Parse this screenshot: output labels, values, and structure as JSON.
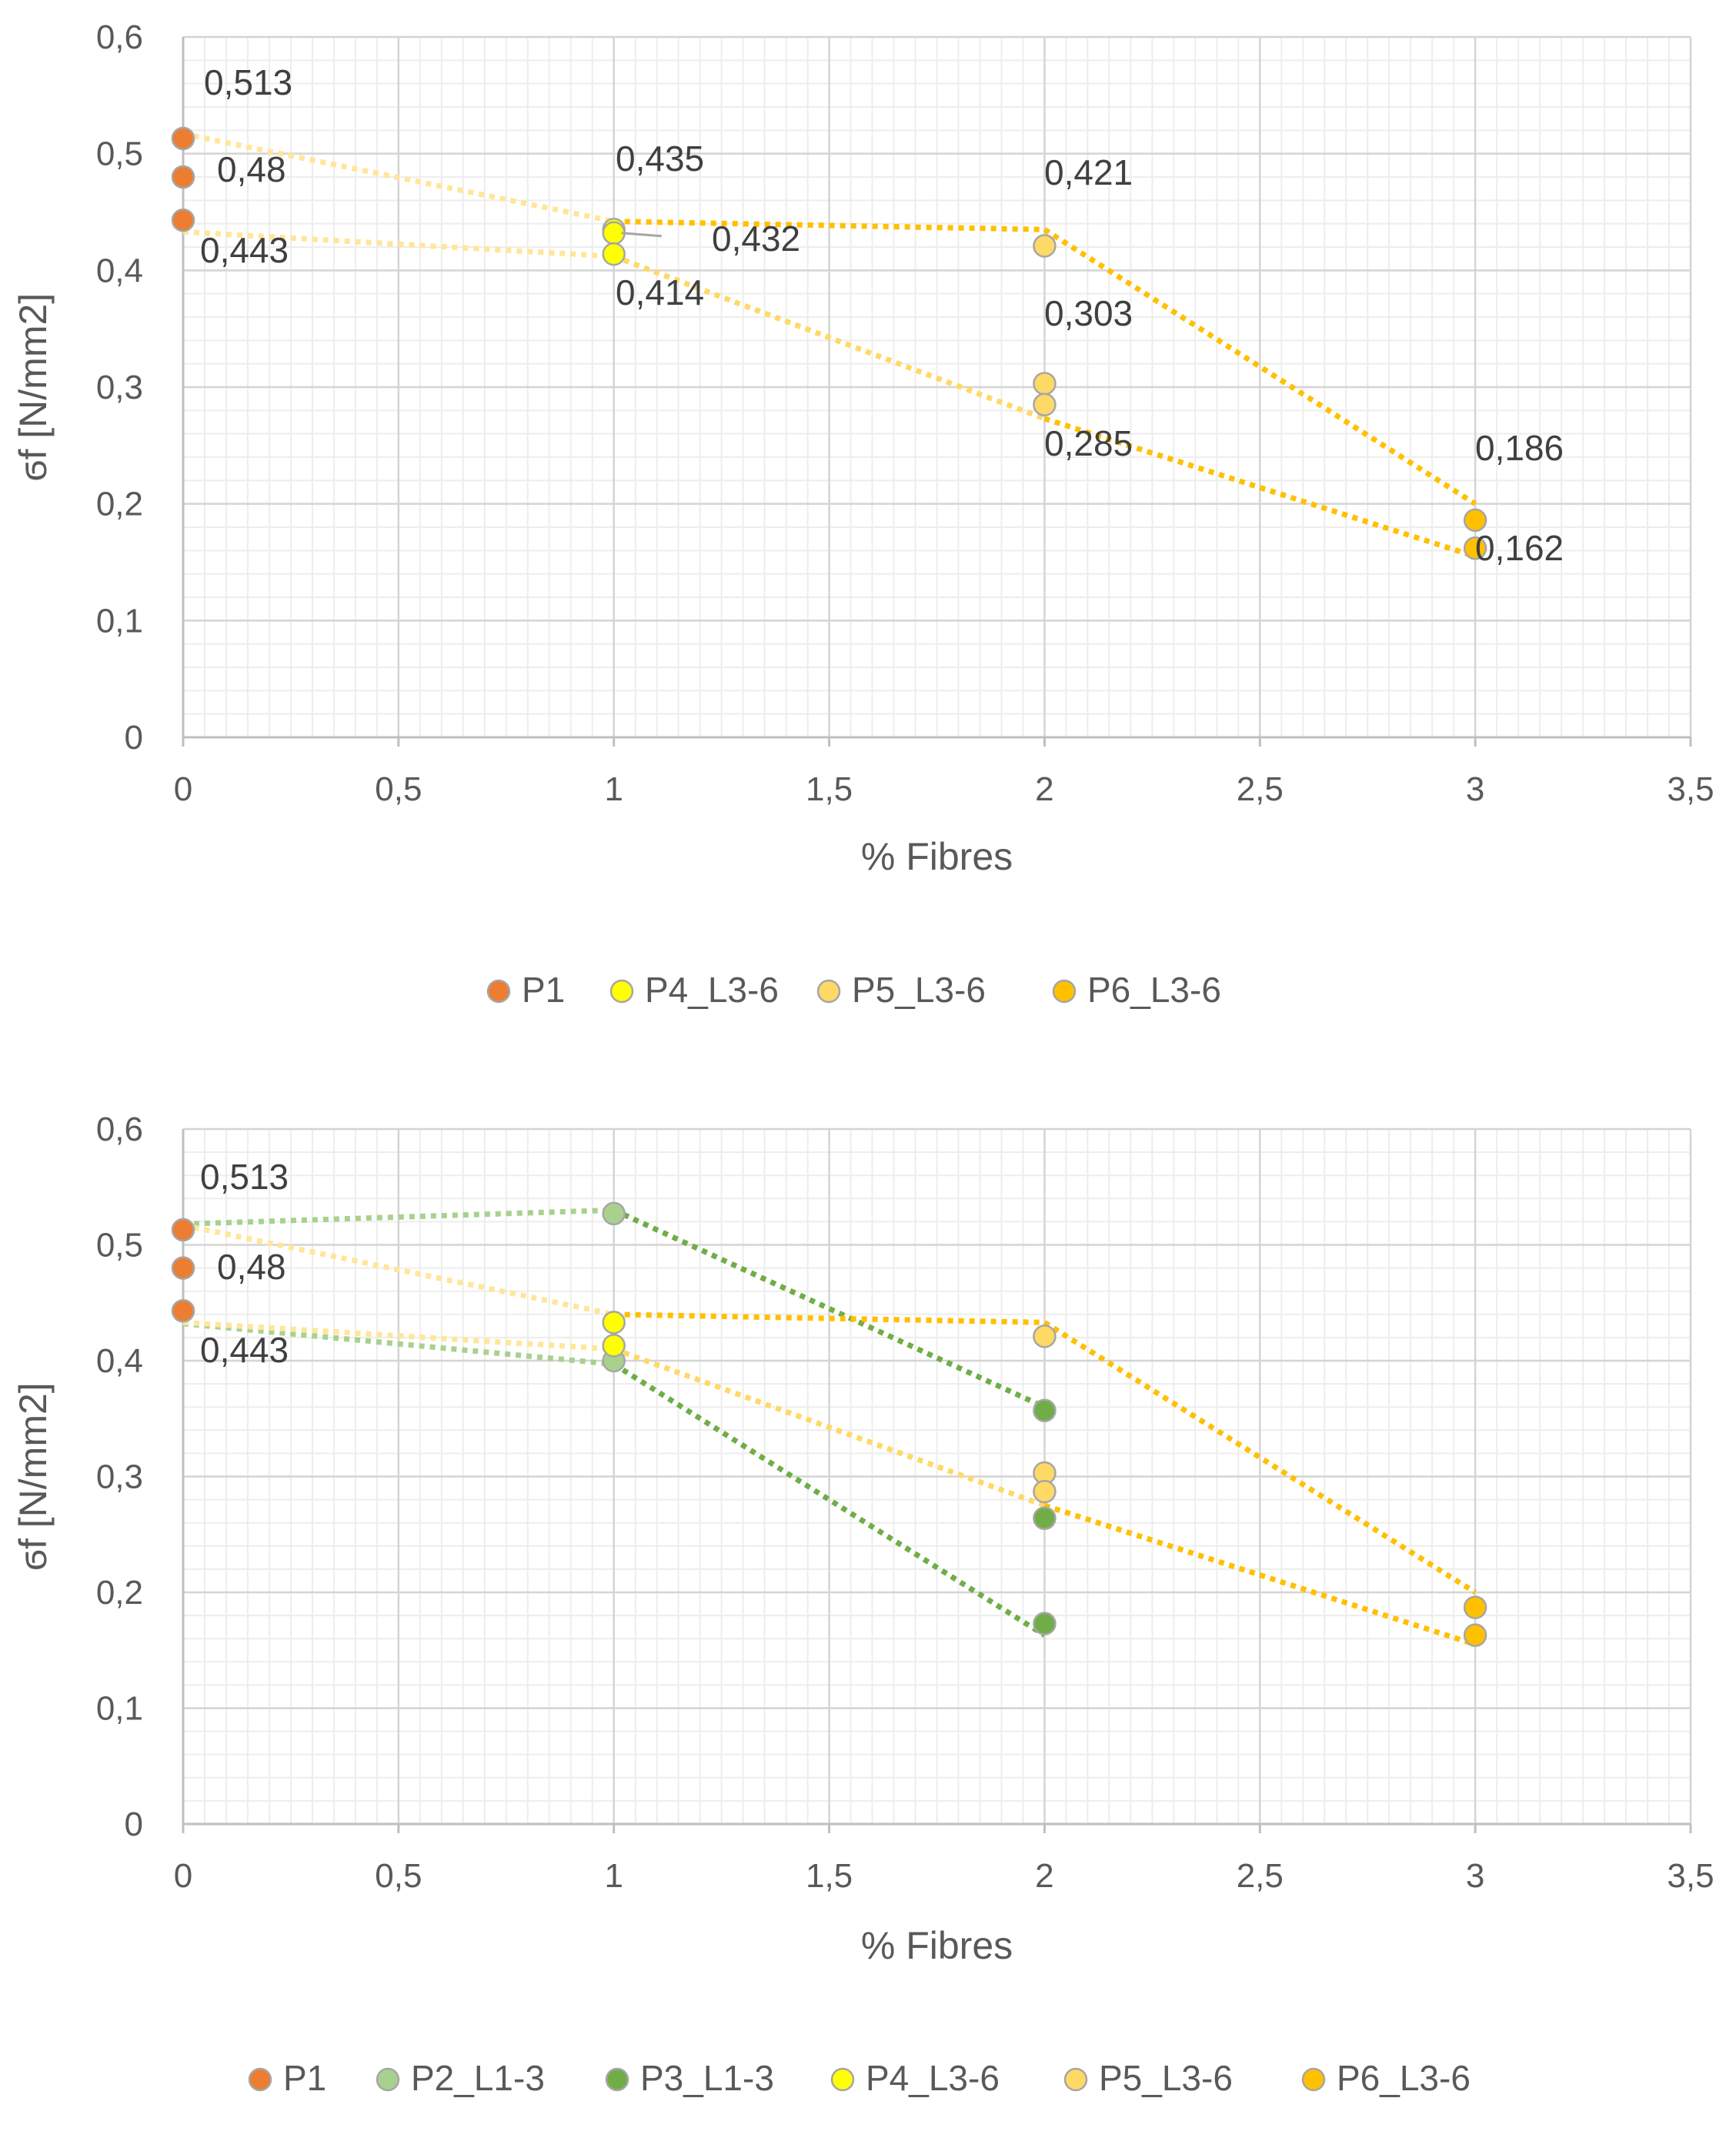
{
  "chart_data": [
    {
      "type": "scatter",
      "title": "",
      "xlabel": "% Fibres",
      "ylabel": "ϭf [N/mm2]",
      "xlim": [
        0,
        3.5
      ],
      "ylim": [
        0,
        0.6
      ],
      "xticks": [
        "0",
        "0,5",
        "1",
        "1,5",
        "2",
        "2,5",
        "3",
        "3,5"
      ],
      "yticks": [
        "0",
        "0,1",
        "0,2",
        "0,3",
        "0,4",
        "0,5",
        "0,6"
      ],
      "grid": true,
      "legend_position": "bottom",
      "series": [
        {
          "name": "P1",
          "color": "#ED7D31",
          "points": [
            [
              0,
              0.513
            ],
            [
              0,
              0.48
            ],
            [
              0,
              0.443
            ]
          ]
        },
        {
          "name": "P4_L3-6",
          "color": "#FFFF00",
          "points": [
            [
              1,
              0.435
            ],
            [
              1,
              0.432
            ],
            [
              1,
              0.414
            ]
          ]
        },
        {
          "name": "P5_L3-6",
          "color": "#FFD966",
          "points": [
            [
              2,
              0.421
            ],
            [
              2,
              0.303
            ],
            [
              2,
              0.285
            ]
          ]
        },
        {
          "name": "P6_L3-6",
          "color": "#FFC000",
          "points": [
            [
              3,
              0.186
            ],
            [
              3,
              0.162
            ]
          ]
        }
      ],
      "trendlines": [
        {
          "color": "#FFE699",
          "from": [
            0,
            0.517
          ],
          "to": [
            1,
            0.442
          ]
        },
        {
          "color": "#FFE699",
          "from": [
            0,
            0.433
          ],
          "to": [
            1,
            0.412
          ]
        },
        {
          "color": "#FFC000",
          "from": [
            1,
            0.442
          ],
          "to": [
            2,
            0.435
          ]
        },
        {
          "color": "#FFC000",
          "from": [
            2,
            0.435
          ],
          "to": [
            3,
            0.2
          ]
        },
        {
          "color": "#FFD966",
          "from": [
            1,
            0.412
          ],
          "to": [
            2,
            0.273
          ]
        },
        {
          "color": "#FFC000",
          "from": [
            2,
            0.273
          ],
          "to": [
            3,
            0.155
          ]
        }
      ],
      "data_labels": [
        {
          "text": "0,513",
          "x": 0,
          "y": 0.513
        },
        {
          "text": "0,48",
          "x": 0,
          "y": 0.48
        },
        {
          "text": "0,443",
          "x": 0,
          "y": 0.443
        },
        {
          "text": "0,435",
          "x": 1,
          "y": 0.435
        },
        {
          "text": "0,432",
          "x": 1,
          "y": 0.432
        },
        {
          "text": "0,414",
          "x": 1,
          "y": 0.414
        },
        {
          "text": "0,421",
          "x": 2,
          "y": 0.421
        },
        {
          "text": "0,303",
          "x": 2,
          "y": 0.303
        },
        {
          "text": "0,285",
          "x": 2,
          "y": 0.285
        },
        {
          "text": "0,186",
          "x": 3,
          "y": 0.186
        },
        {
          "text": "0,162",
          "x": 3,
          "y": 0.162
        }
      ]
    },
    {
      "type": "scatter",
      "title": "",
      "xlabel": "% Fibres",
      "ylabel": "ϭf [N/mm2]",
      "xlim": [
        0,
        3.5
      ],
      "ylim": [
        0,
        0.6
      ],
      "xticks": [
        "0",
        "0,5",
        "1",
        "1,5",
        "2",
        "2,5",
        "3",
        "3,5"
      ],
      "yticks": [
        "0",
        "0,1",
        "0,2",
        "0,3",
        "0,4",
        "0,5",
        "0,6"
      ],
      "grid": true,
      "legend_position": "bottom",
      "series": [
        {
          "name": "P1",
          "color": "#ED7D31",
          "points": [
            [
              0,
              0.513
            ],
            [
              0,
              0.48
            ],
            [
              0,
              0.443
            ]
          ]
        },
        {
          "name": "P2_L1-3",
          "color": "#A9D18E",
          "points": [
            [
              1,
              0.527
            ],
            [
              1,
              0.4
            ]
          ]
        },
        {
          "name": "P3_L1-3",
          "color": "#70AD47",
          "points": [
            [
              2,
              0.357
            ],
            [
              2,
              0.264
            ],
            [
              2,
              0.173
            ]
          ]
        },
        {
          "name": "P4_L3-6",
          "color": "#FFFF00",
          "points": [
            [
              1,
              0.433
            ],
            [
              1,
              0.413
            ]
          ]
        },
        {
          "name": "P5_L3-6",
          "color": "#FFD966",
          "points": [
            [
              2,
              0.421
            ],
            [
              2,
              0.303
            ],
            [
              2,
              0.287
            ]
          ]
        },
        {
          "name": "P6_L3-6",
          "color": "#FFC000",
          "points": [
            [
              3,
              0.187
            ],
            [
              3,
              0.163
            ]
          ]
        }
      ],
      "trendlines": [
        {
          "color": "#A9D18E",
          "from": [
            0,
            0.518
          ],
          "to": [
            1,
            0.53
          ]
        },
        {
          "color": "#A9D18E",
          "from": [
            0,
            0.432
          ],
          "to": [
            1,
            0.397
          ]
        },
        {
          "color": "#70AD47",
          "from": [
            1,
            0.53
          ],
          "to": [
            2,
            0.36
          ]
        },
        {
          "color": "#70AD47",
          "from": [
            1,
            0.397
          ],
          "to": [
            2,
            0.163
          ]
        },
        {
          "color": "#FFE699",
          "from": [
            0,
            0.517
          ],
          "to": [
            1,
            0.44
          ]
        },
        {
          "color": "#FFE699",
          "from": [
            0,
            0.433
          ],
          "to": [
            1,
            0.41
          ]
        },
        {
          "color": "#FFC000",
          "from": [
            1,
            0.44
          ],
          "to": [
            2,
            0.433
          ]
        },
        {
          "color": "#FFC000",
          "from": [
            2,
            0.433
          ],
          "to": [
            3,
            0.2
          ]
        },
        {
          "color": "#FFD966",
          "from": [
            1,
            0.41
          ],
          "to": [
            2,
            0.275
          ]
        },
        {
          "color": "#FFC000",
          "from": [
            2,
            0.275
          ],
          "to": [
            3,
            0.155
          ]
        }
      ],
      "data_labels": [
        {
          "text": "0,513",
          "x": 0,
          "y": 0.513
        },
        {
          "text": "0,48",
          "x": 0,
          "y": 0.48
        },
        {
          "text": "0,443",
          "x": 0,
          "y": 0.443
        }
      ]
    }
  ]
}
